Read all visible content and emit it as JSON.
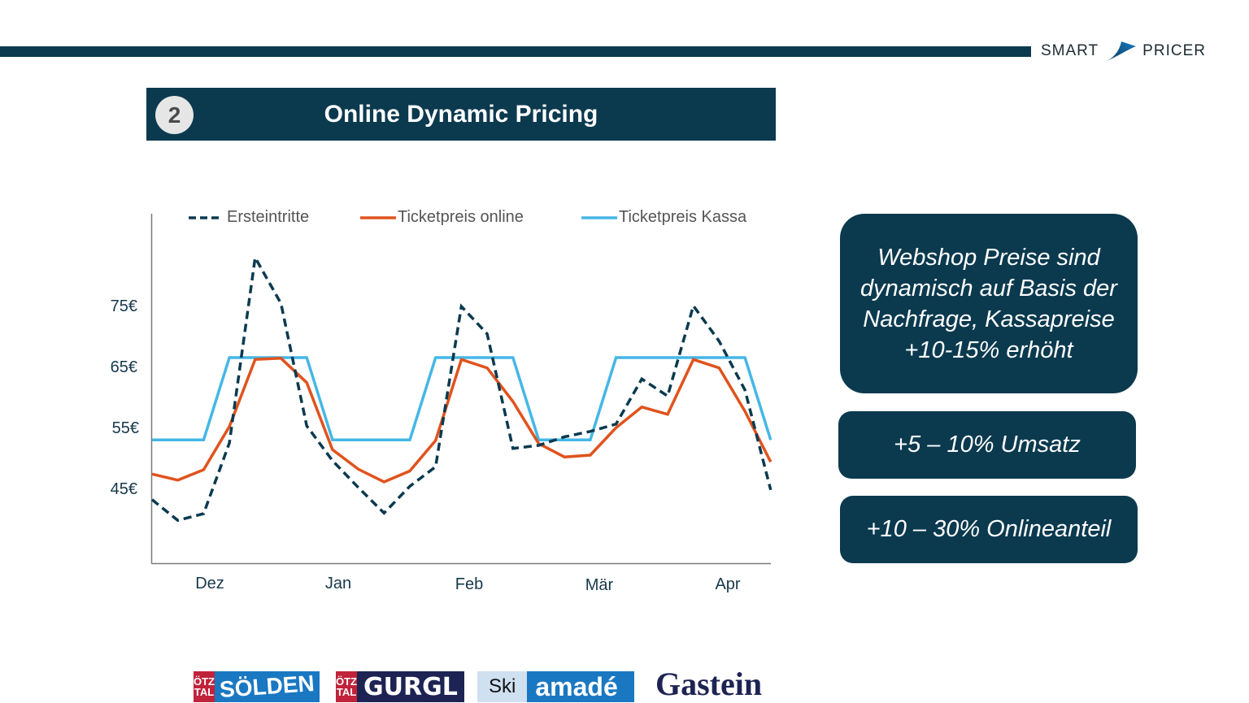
{
  "brand": {
    "left": "SMART",
    "right": "PRICER"
  },
  "header": {
    "number": "2",
    "title": "Online Dynamic Pricing"
  },
  "legend": [
    {
      "label": "Ersteintritte",
      "color": "#0b3a4f",
      "style": "dashed"
    },
    {
      "label": "Ticketpreis online",
      "color": "#e0531d",
      "style": "solid"
    },
    {
      "label": "Ticketpreis Kassa",
      "color": "#45b7e6",
      "style": "solid"
    }
  ],
  "callouts": [
    {
      "text": "Webshop Preise sind dynamisch auf Basis der Nachfrage, Kassapreise +10-15% erhöht"
    },
    {
      "text": "+5 – 10% Umsatz"
    },
    {
      "text": "+10 – 30% Onlineanteil"
    }
  ],
  "logos": [
    {
      "prefix_top": "ÖTZ",
      "prefix_bottom": "TAL",
      "name": "SÖLDEN"
    },
    {
      "prefix_top": "ÖTZ",
      "prefix_bottom": "TAL",
      "name": "GURGL"
    },
    {
      "prefix": "Ski",
      "name": "amadé"
    },
    {
      "name": "Gastein"
    }
  ],
  "chart_data": {
    "type": "line",
    "title": "",
    "xlabel": "",
    "ylabel": "",
    "x_tick_labels": [
      "Dez",
      "Jan",
      "Feb",
      "Mär",
      "Apr"
    ],
    "y_tick_labels": [
      "45€",
      "55€",
      "65€",
      "75€"
    ],
    "y_ticks": [
      45,
      55,
      65,
      75
    ],
    "ylim": [
      33,
      88
    ],
    "grid": false,
    "legend_position": "top",
    "x": [
      0,
      1,
      2,
      3,
      4,
      5,
      6,
      7,
      8,
      9,
      10,
      11,
      12,
      13,
      14,
      15,
      16,
      17,
      18,
      19,
      20,
      21,
      22,
      23,
      24
    ],
    "series": [
      {
        "name": "Ersteintritte",
        "style": "dashed",
        "color": "#0b3a4f",
        "values": [
          43.3,
          39.9,
          41.0,
          52.6,
          83.0,
          75.5,
          55.4,
          49.7,
          45.3,
          41.1,
          45.5,
          48.7,
          75.0,
          70.5,
          51.7,
          52.2,
          53.6,
          54.5,
          55.7,
          63.1,
          60.3,
          75.1,
          69.3,
          61.3,
          44.9
        ]
      },
      {
        "name": "Ticketpreis online",
        "style": "solid",
        "color": "#e0531d",
        "values": [
          47.5,
          46.5,
          48.2,
          55.3,
          66.3,
          66.5,
          62.5,
          51.5,
          48.3,
          46.2,
          48.0,
          53.0,
          66.3,
          64.9,
          59.4,
          52.5,
          50.3,
          50.6,
          55.1,
          58.5,
          57.3,
          66.3,
          64.9,
          57.8,
          49.5
        ]
      },
      {
        "name": "Ticketpreis Kassa",
        "style": "solid",
        "color": "#45b7e6",
        "values": [
          53.1,
          53.1,
          53.1,
          66.6,
          66.6,
          66.6,
          66.6,
          53.1,
          53.1,
          53.1,
          53.1,
          66.6,
          66.6,
          66.6,
          66.6,
          53.1,
          53.1,
          53.1,
          66.6,
          66.6,
          66.6,
          66.6,
          66.6,
          66.6,
          53.1
        ]
      }
    ]
  }
}
